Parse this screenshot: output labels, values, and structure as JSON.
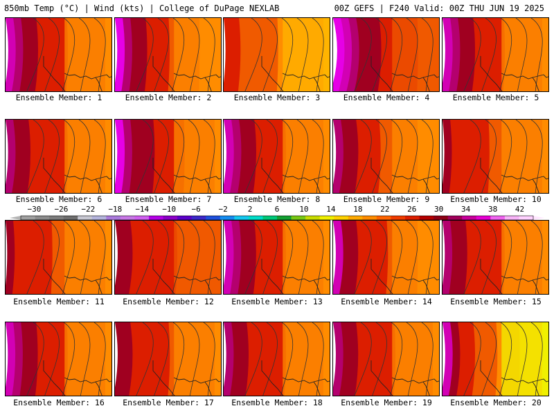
{
  "header": {
    "left_title": "850mb Temp (°C) | Wind (kts) | College of DuPage NEXLAB",
    "right_title": "00Z GEFS | F240 Valid: 00Z THU JUN 19 2025"
  },
  "members": [
    {
      "label": "Ensemble Member: 1",
      "west_temp": 38,
      "east_temp": 22,
      "ridge": 0.3
    },
    {
      "label": "Ensemble Member: 2",
      "west_temp": 40,
      "east_temp": 20,
      "ridge": 0.25
    },
    {
      "label": "Ensemble Member: 3",
      "west_temp": 30,
      "east_temp": 18,
      "ridge": 0.2
    },
    {
      "label": "Ensemble Member: 4",
      "west_temp": 40,
      "east_temp": 24,
      "ridge": 0.45
    },
    {
      "label": "Ensemble Member: 5",
      "west_temp": 38,
      "east_temp": 22,
      "ridge": 0.3
    },
    {
      "label": "Ensemble Member: 6",
      "west_temp": 36,
      "east_temp": 22,
      "ridge": 0.28
    },
    {
      "label": "Ensemble Member: 7",
      "west_temp": 40,
      "east_temp": 22,
      "ridge": 0.25
    },
    {
      "label": "Ensemble Member: 8",
      "west_temp": 38,
      "east_temp": 22,
      "ridge": 0.3
    },
    {
      "label": "Ensemble Member: 9",
      "west_temp": 36,
      "east_temp": 20,
      "ridge": 0.32
    },
    {
      "label": "Ensemble Member: 10",
      "west_temp": 32,
      "east_temp": 22,
      "ridge": 0.2
    },
    {
      "label": "Ensemble Member: 11",
      "west_temp": 32,
      "east_temp": 22,
      "ridge": 0.18
    },
    {
      "label": "Ensemble Member: 12",
      "west_temp": 32,
      "east_temp": 24,
      "ridge": 0.3
    },
    {
      "label": "Ensemble Member: 13",
      "west_temp": 38,
      "east_temp": 22,
      "ridge": 0.28
    },
    {
      "label": "Ensemble Member: 14",
      "west_temp": 38,
      "east_temp": 20,
      "ridge": 0.3
    },
    {
      "label": "Ensemble Member: 15",
      "west_temp": 36,
      "east_temp": 22,
      "ridge": 0.25
    },
    {
      "label": "Ensemble Member: 16",
      "west_temp": 38,
      "east_temp": 22,
      "ridge": 0.25
    },
    {
      "label": "Ensemble Member: 17",
      "west_temp": 34,
      "east_temp": 22,
      "ridge": 0.3
    },
    {
      "label": "Ensemble Member: 18",
      "west_temp": 36,
      "east_temp": 22,
      "ridge": 0.28
    },
    {
      "label": "Ensemble Member: 19",
      "west_temp": 36,
      "east_temp": 22,
      "ridge": 0.3
    },
    {
      "label": "Ensemble Member: 20",
      "west_temp": 38,
      "east_temp": 14,
      "ridge": 0.3
    }
  ],
  "colorbar": {
    "labels": [
      "−30",
      "−26",
      "−22",
      "−18",
      "−14",
      "−10",
      "−6",
      "−2",
      "2",
      "6",
      "10",
      "14",
      "18",
      "22",
      "26",
      "30",
      "34",
      "38",
      "42"
    ],
    "label_values": [
      -30,
      -26,
      -22,
      -18,
      -14,
      -10,
      -6,
      -2,
      2,
      6,
      10,
      14,
      18,
      22,
      26,
      30,
      34,
      38,
      42
    ],
    "colors": [
      "#a0a0a0",
      "#8c8c8c",
      "#7d7d7d",
      "#6e6e6e",
      "#c8c8d2",
      "#b4b4dc",
      "#aa7adc",
      "#c878e6",
      "#d060f0",
      "#b400e6",
      "#8c00c8",
      "#5a00c8",
      "#3c28c8",
      "#1e50dc",
      "#148cf0",
      "#14c8f0",
      "#00dcc8",
      "#00c878",
      "#14a032",
      "#78c814",
      "#c8dc00",
      "#f0f000",
      "#ffd200",
      "#ffaa00",
      "#ff8c00",
      "#ff6400",
      "#f03c00",
      "#dc1e00",
      "#b40000",
      "#8c0014",
      "#a0005a",
      "#c8009b",
      "#e600d2",
      "#f064f0",
      "#f8b4f8",
      "#ffd2ff"
    ],
    "min": -32,
    "max": 44
  }
}
